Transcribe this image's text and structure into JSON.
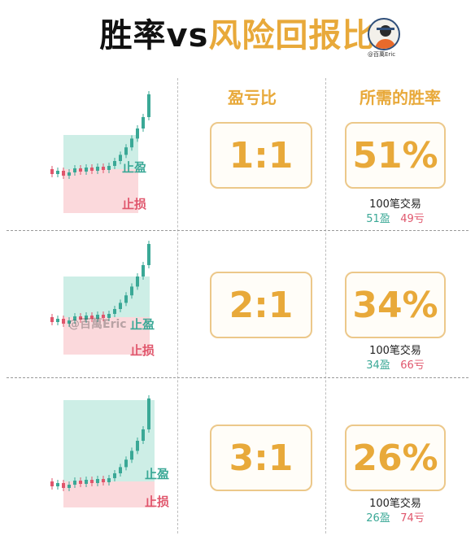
{
  "title": {
    "part1": "胜率vs",
    "part2": "风险回报比"
  },
  "avatar": {
    "handle": "@百萬Eric"
  },
  "colors": {
    "accent": "#e8a93a",
    "profit": "#3aa896",
    "loss": "#e0566c",
    "tp_zone": "#cdeee6",
    "sl_zone": "#fbd9dc"
  },
  "headers": {
    "ratio": "盈亏比",
    "win_rate": "所需的胜率"
  },
  "watermark": "@百萬Eric",
  "rows": [
    {
      "ratio": "1:1",
      "win_rate": "51%",
      "trades_label": "100笔交易",
      "wins": "51盈",
      "losses": "49亏",
      "tp_label": "止盈",
      "sl_label": "止损"
    },
    {
      "ratio": "2:1",
      "win_rate": "34%",
      "trades_label": "100笔交易",
      "wins": "34盈",
      "losses": "66亏",
      "tp_label": "止盈",
      "sl_label": "止损"
    },
    {
      "ratio": "3:1",
      "win_rate": "26%",
      "trades_label": "100笔交易",
      "wins": "26盈",
      "losses": "74亏",
      "tp_label": "止盈",
      "sl_label": "止损"
    }
  ]
}
